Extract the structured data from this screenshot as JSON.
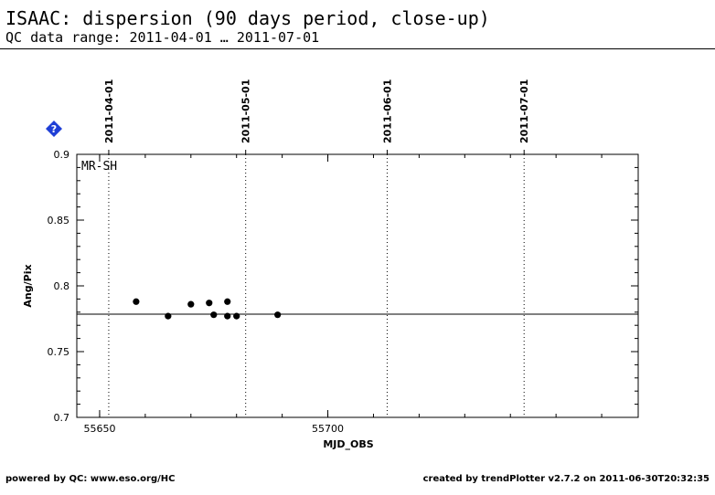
{
  "header": {
    "title": "ISAAC: dispersion (90 days period, close-up)",
    "subtitle": "QC data range: 2011-04-01 … 2011-07-01"
  },
  "footer": {
    "left": "powered by QC: www.eso.org/HC",
    "right": "created by trendPlotter v2.7.2 on 2011-06-30T20:32:35"
  },
  "colors": {
    "points": "#000000",
    "help_icon": "#1f3fd6"
  },
  "icons": {
    "help": "help-icon"
  },
  "chart_data": {
    "type": "scatter",
    "xlabel": "MJD_OBS",
    "ylabel": "Ang/Pix",
    "xlim": [
      55645,
      55768
    ],
    "ylim": [
      0.7,
      0.9
    ],
    "xticks": [
      55650,
      55700
    ],
    "xtick_labels": [
      "55650",
      "55700"
    ],
    "yticks": [
      0.7,
      0.75,
      0.8,
      0.85,
      0.9
    ],
    "ytick_labels": [
      "0.7",
      "0.75",
      "0.8",
      "0.85",
      "0.9"
    ],
    "panel_label": "MR-SH",
    "reference_line": 0.7785,
    "date_markers": [
      {
        "x": 55652,
        "label": "2011-04-01"
      },
      {
        "x": 55682,
        "label": "2011-05-01"
      },
      {
        "x": 55713,
        "label": "2011-06-01"
      },
      {
        "x": 55743,
        "label": "2011-07-01"
      }
    ],
    "series": [
      {
        "points": [
          {
            "x": 55658.0,
            "y": 0.788
          },
          {
            "x": 55665.0,
            "y": 0.777
          },
          {
            "x": 55670.0,
            "y": 0.786
          },
          {
            "x": 55674.0,
            "y": 0.787
          },
          {
            "x": 55675.0,
            "y": 0.778
          },
          {
            "x": 55678.0,
            "y": 0.777
          },
          {
            "x": 55678.0,
            "y": 0.788
          },
          {
            "x": 55680.0,
            "y": 0.777
          },
          {
            "x": 55689.0,
            "y": 0.778
          }
        ]
      }
    ]
  }
}
